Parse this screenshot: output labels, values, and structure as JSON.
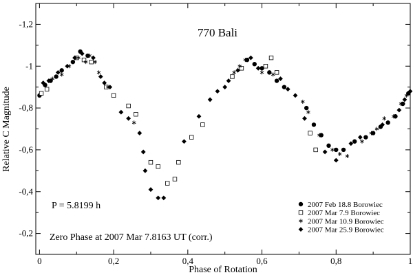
{
  "chart_data": {
    "type": "scatter",
    "title": "770 Bali",
    "xlabel": "Phase of Rotation",
    "ylabel": "Relative C Magnitude",
    "xlim": [
      -0.01,
      1.0
    ],
    "ylim": [
      -1.3,
      -0.1
    ],
    "y_inverted": true,
    "x_ticks": [
      0,
      0.2,
      0.4,
      0.6,
      0.8,
      1
    ],
    "x_tick_labels": [
      "0",
      "0,2",
      "0,4",
      "0,6",
      "0,8",
      "1"
    ],
    "y_ticks": [
      -1.2,
      -1.0,
      -0.8,
      -0.6,
      -0.4,
      -0.2
    ],
    "y_tick_labels": [
      "-1,2",
      "-1",
      "-0,8",
      "-0,6",
      "-0,4",
      "-0,2"
    ],
    "grid": false,
    "legend_position": "bottom-right",
    "annotations": [
      "P = 5.8199 h",
      "Zero Phase at 2007 Mar 7.8163 UT (corr.)"
    ],
    "series": [
      {
        "name": "2007 Feb 18.8 Borowiec",
        "marker": "circle",
        "points": [
          [
            0.0,
            -0.86
          ],
          [
            0.015,
            -0.91
          ],
          [
            0.03,
            -0.93
          ],
          [
            0.045,
            -0.95
          ],
          [
            0.06,
            -0.98
          ],
          [
            0.09,
            -1.02
          ],
          [
            0.11,
            -1.07
          ],
          [
            0.13,
            -1.05
          ],
          [
            0.56,
            -1.03
          ],
          [
            0.58,
            -1.01
          ],
          [
            0.6,
            -0.99
          ],
          [
            0.62,
            -0.97
          ],
          [
            0.64,
            -0.93
          ],
          [
            0.66,
            -0.9
          ],
          [
            0.72,
            -0.8
          ],
          [
            0.74,
            -0.72
          ],
          [
            0.76,
            -0.67
          ],
          [
            0.78,
            -0.62
          ],
          [
            0.8,
            -0.6
          ],
          [
            0.82,
            -0.6
          ],
          [
            0.85,
            -0.64
          ],
          [
            0.88,
            -0.66
          ],
          [
            0.9,
            -0.68
          ],
          [
            0.92,
            -0.71
          ],
          [
            0.94,
            -0.73
          ],
          [
            0.96,
            -0.76
          ],
          [
            0.98,
            -0.82
          ],
          [
            0.995,
            -0.87
          ]
        ]
      },
      {
        "name": "2007 Mar 7.9 Borowiec",
        "marker": "square",
        "points": [
          [
            0.005,
            -0.87
          ],
          [
            0.02,
            -0.89
          ],
          [
            0.1,
            -1.04
          ],
          [
            0.12,
            -1.03
          ],
          [
            0.14,
            -1.02
          ],
          [
            0.18,
            -0.9
          ],
          [
            0.2,
            -0.86
          ],
          [
            0.24,
            -0.81
          ],
          [
            0.26,
            -0.77
          ],
          [
            0.3,
            -0.54
          ],
          [
            0.32,
            -0.52
          ],
          [
            0.345,
            -0.44
          ],
          [
            0.365,
            -0.46
          ],
          [
            0.375,
            -0.54
          ],
          [
            0.41,
            -0.66
          ],
          [
            0.44,
            -0.72
          ],
          [
            0.52,
            -0.95
          ],
          [
            0.545,
            -0.99
          ],
          [
            0.61,
            -1.0
          ],
          [
            0.625,
            -1.04
          ],
          [
            0.64,
            -0.97
          ],
          [
            0.73,
            -0.68
          ],
          [
            0.745,
            -0.6
          ]
        ]
      },
      {
        "name": "2007 Mar 10.9 Borowiec",
        "marker": "star",
        "points": [
          [
            0.035,
            -0.94
          ],
          [
            0.06,
            -0.96
          ],
          [
            0.08,
            -1.0
          ],
          [
            0.105,
            -1.04
          ],
          [
            0.125,
            -1.02
          ],
          [
            0.135,
            -1.05
          ],
          [
            0.15,
            -1.02
          ],
          [
            0.16,
            -0.97
          ],
          [
            0.185,
            -0.9
          ],
          [
            0.255,
            -0.73
          ],
          [
            0.525,
            -0.97
          ],
          [
            0.54,
            -1.0
          ],
          [
            0.555,
            -1.03
          ],
          [
            0.6,
            -0.97
          ],
          [
            0.63,
            -0.96
          ],
          [
            0.71,
            -0.83
          ],
          [
            0.725,
            -0.78
          ],
          [
            0.755,
            -0.67
          ],
          [
            0.79,
            -0.6
          ],
          [
            0.81,
            -0.58
          ],
          [
            0.83,
            -0.57
          ],
          [
            0.87,
            -0.64
          ],
          [
            0.895,
            -0.68
          ],
          [
            0.91,
            -0.7
          ],
          [
            0.93,
            -0.75
          ],
          [
            0.955,
            -0.76
          ],
          [
            0.975,
            -0.82
          ],
          [
            0.99,
            -0.86
          ]
        ]
      },
      {
        "name": "2007 Mar 25.9 Borowiec",
        "marker": "diamond",
        "points": [
          [
            0.01,
            -0.92
          ],
          [
            0.025,
            -0.93
          ],
          [
            0.05,
            -0.97
          ],
          [
            0.075,
            -1.0
          ],
          [
            0.095,
            -1.04
          ],
          [
            0.115,
            -1.06
          ],
          [
            0.145,
            -1.04
          ],
          [
            0.165,
            -0.95
          ],
          [
            0.175,
            -0.92
          ],
          [
            0.19,
            -0.9
          ],
          [
            0.22,
            -0.78
          ],
          [
            0.24,
            -0.75
          ],
          [
            0.27,
            -0.68
          ],
          [
            0.28,
            -0.59
          ],
          [
            0.285,
            -0.5
          ],
          [
            0.3,
            -0.41
          ],
          [
            0.32,
            -0.37
          ],
          [
            0.335,
            -0.37
          ],
          [
            0.39,
            -0.64
          ],
          [
            0.43,
            -0.76
          ],
          [
            0.46,
            -0.84
          ],
          [
            0.48,
            -0.88
          ],
          [
            0.5,
            -0.9
          ],
          [
            0.51,
            -0.93
          ],
          [
            0.535,
            -0.98
          ],
          [
            0.57,
            -1.04
          ],
          [
            0.59,
            -0.99
          ],
          [
            0.65,
            -0.94
          ],
          [
            0.67,
            -0.89
          ],
          [
            0.69,
            -0.86
          ],
          [
            0.715,
            -0.75
          ],
          [
            0.77,
            -0.59
          ],
          [
            0.8,
            -0.55
          ],
          [
            0.84,
            -0.63
          ],
          [
            0.865,
            -0.66
          ],
          [
            0.925,
            -0.72
          ],
          [
            0.97,
            -0.79
          ],
          [
            0.985,
            -0.84
          ],
          [
            1.0,
            -0.88
          ]
        ]
      }
    ]
  }
}
